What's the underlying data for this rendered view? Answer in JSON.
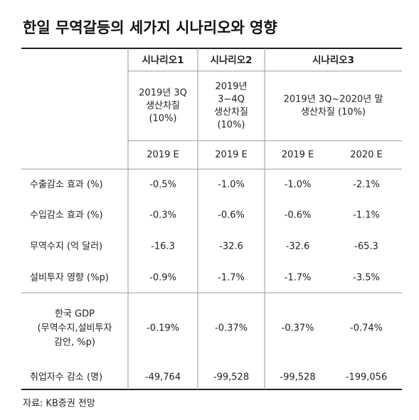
{
  "title": "한일 무역갈등의 세가지 시나리오와 영향",
  "scenarios": [
    {
      "name": "시나리오1",
      "description": [
        "2019년 3Q",
        "생산차질",
        "(10%)"
      ]
    },
    {
      "name": "시나리오2",
      "description": [
        "2019년",
        "3~4Q",
        "생산차질",
        "(10%)"
      ]
    },
    {
      "name": "시나리오3",
      "description": [
        "2019년 3Q~2020년 말",
        "생산차질 (10%)"
      ]
    }
  ],
  "years": [
    "2019 E",
    "2019 E",
    "2019 E",
    "2020 E"
  ],
  "rows": [
    {
      "label": [
        "수출감소 효과 (%)"
      ],
      "values": [
        "-0.5%",
        "-1.0%",
        "-1.0%",
        "-2.1%"
      ]
    },
    {
      "label": [
        "수입감소 효과 (%)"
      ],
      "values": [
        "-0.3%",
        "-0.6%",
        "-0.6%",
        "-1.1%"
      ]
    },
    {
      "label": [
        "무역수지 (억 달러)"
      ],
      "values": [
        "-16.3",
        "-32.6",
        "-32.6",
        "-65.3"
      ]
    },
    {
      "label": [
        "설비투자 영향 (%p)"
      ],
      "values": [
        "-0.9%",
        "-1.7%",
        "-1.7%",
        "-3.5%"
      ]
    },
    {
      "label": [
        "한국 GDP",
        "(무역수지,설비투자",
        "감안, %p)"
      ],
      "values": [
        "-0.19%",
        "-0.37%",
        "-0.37%",
        "-0.74%"
      ]
    },
    {
      "label": [
        "취업자수 감소 (명)"
      ],
      "values": [
        "-49,764",
        "-99,528",
        "-99,528",
        "-199,056"
      ]
    }
  ],
  "source": "자료: KB증권 전망"
}
